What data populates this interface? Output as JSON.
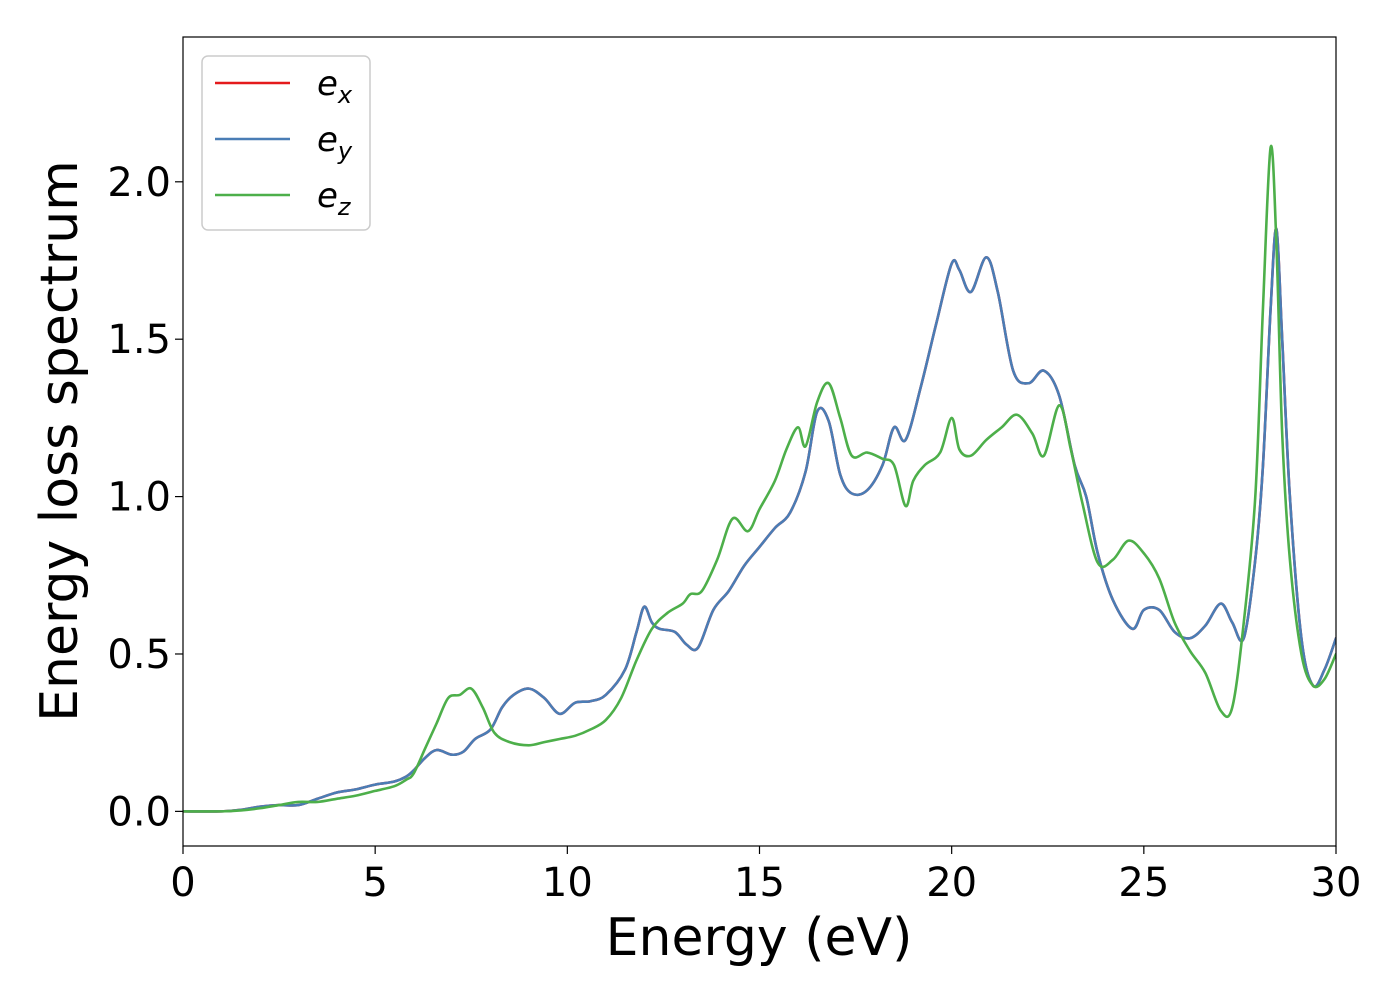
{
  "chart_data": {
    "type": "line",
    "xlabel": "Energy (eV)",
    "ylabel": "Energy loss spectrum",
    "xlim": [
      0,
      30
    ],
    "ylim": [
      -0.11,
      2.46
    ],
    "xticks": [
      0,
      5,
      10,
      15,
      20,
      25,
      30
    ],
    "xtick_labels": [
      "0",
      "5",
      "10",
      "15",
      "20",
      "25",
      "30"
    ],
    "yticks": [
      0.0,
      0.5,
      1.0,
      1.5,
      2.0
    ],
    "ytick_labels": [
      "0.0",
      "0.5",
      "1.0",
      "1.5",
      "2.0"
    ],
    "grid": false,
    "legend_position": "top-left",
    "series": [
      {
        "name": "e",
        "subscript": "x",
        "color": "#e41a1c",
        "x": [
          0,
          1,
          1.5,
          2,
          2.5,
          3,
          3.5,
          4,
          4.5,
          5,
          5.5,
          5.8,
          6,
          6.3,
          6.6,
          7,
          7.3,
          7.6,
          8,
          8.3,
          8.6,
          9,
          9.4,
          9.8,
          10.2,
          10.6,
          11,
          11.5,
          11.8,
          12,
          12.2,
          12.4,
          12.8,
          13.1,
          13.4,
          13.8,
          14.2,
          14.6,
          15,
          15.4,
          15.8,
          16.2,
          16.5,
          16.8,
          17.1,
          17.4,
          17.8,
          18.2,
          18.5,
          18.8,
          19.2,
          19.6,
          20,
          20.2,
          20.5,
          20.9,
          21.2,
          21.6,
          22,
          22.4,
          22.8,
          23.2,
          23.5,
          23.8,
          24.2,
          24.7,
          25,
          25.4,
          25.8,
          26.2,
          26.6,
          27,
          27.3,
          27.6,
          27.9,
          28.1,
          28.3,
          28.45,
          28.6,
          28.8,
          29.1,
          29.4,
          29.7,
          30
        ],
        "y": [
          0,
          0,
          0.005,
          0.015,
          0.02,
          0.02,
          0.04,
          0.06,
          0.07,
          0.085,
          0.095,
          0.11,
          0.13,
          0.17,
          0.195,
          0.18,
          0.19,
          0.23,
          0.26,
          0.33,
          0.37,
          0.39,
          0.36,
          0.31,
          0.345,
          0.35,
          0.37,
          0.45,
          0.57,
          0.65,
          0.6,
          0.58,
          0.57,
          0.53,
          0.52,
          0.64,
          0.7,
          0.78,
          0.84,
          0.9,
          0.95,
          1.08,
          1.27,
          1.24,
          1.07,
          1.01,
          1.02,
          1.1,
          1.22,
          1.18,
          1.35,
          1.55,
          1.74,
          1.72,
          1.65,
          1.76,
          1.65,
          1.4,
          1.36,
          1.4,
          1.32,
          1.1,
          1.0,
          0.82,
          0.67,
          0.58,
          0.64,
          0.64,
          0.57,
          0.55,
          0.59,
          0.66,
          0.6,
          0.55,
          0.8,
          1.1,
          1.6,
          1.85,
          1.5,
          1.0,
          0.55,
          0.4,
          0.45,
          0.55
        ]
      },
      {
        "name": "e",
        "subscript": "y",
        "color": "#4a7db5",
        "x": [
          0,
          1,
          1.5,
          2,
          2.5,
          3,
          3.5,
          4,
          4.5,
          5,
          5.5,
          5.8,
          6,
          6.3,
          6.6,
          7,
          7.3,
          7.6,
          8,
          8.3,
          8.6,
          9,
          9.4,
          9.8,
          10.2,
          10.6,
          11,
          11.5,
          11.8,
          12,
          12.2,
          12.4,
          12.8,
          13.1,
          13.4,
          13.8,
          14.2,
          14.6,
          15,
          15.4,
          15.8,
          16.2,
          16.5,
          16.8,
          17.1,
          17.4,
          17.8,
          18.2,
          18.5,
          18.8,
          19.2,
          19.6,
          20,
          20.2,
          20.5,
          20.9,
          21.2,
          21.6,
          22,
          22.4,
          22.8,
          23.2,
          23.5,
          23.8,
          24.2,
          24.7,
          25,
          25.4,
          25.8,
          26.2,
          26.6,
          27,
          27.3,
          27.6,
          27.9,
          28.1,
          28.3,
          28.45,
          28.6,
          28.8,
          29.1,
          29.4,
          29.7,
          30
        ],
        "y": [
          0,
          0,
          0.005,
          0.015,
          0.02,
          0.02,
          0.04,
          0.06,
          0.07,
          0.085,
          0.095,
          0.11,
          0.13,
          0.17,
          0.195,
          0.18,
          0.19,
          0.23,
          0.26,
          0.33,
          0.37,
          0.39,
          0.36,
          0.31,
          0.345,
          0.35,
          0.37,
          0.45,
          0.57,
          0.65,
          0.6,
          0.58,
          0.57,
          0.53,
          0.52,
          0.64,
          0.7,
          0.78,
          0.84,
          0.9,
          0.95,
          1.08,
          1.27,
          1.24,
          1.07,
          1.01,
          1.02,
          1.1,
          1.22,
          1.18,
          1.35,
          1.55,
          1.74,
          1.72,
          1.65,
          1.76,
          1.65,
          1.4,
          1.36,
          1.4,
          1.32,
          1.1,
          1.0,
          0.82,
          0.67,
          0.58,
          0.64,
          0.64,
          0.57,
          0.55,
          0.59,
          0.66,
          0.6,
          0.55,
          0.8,
          1.1,
          1.6,
          1.85,
          1.5,
          1.0,
          0.55,
          0.4,
          0.45,
          0.55
        ]
      },
      {
        "name": "e",
        "subscript": "z",
        "color": "#4daf4a",
        "x": [
          0,
          1,
          1.5,
          2,
          2.5,
          3,
          3.5,
          4,
          4.5,
          5,
          5.5,
          5.8,
          6,
          6.3,
          6.6,
          6.9,
          7.2,
          7.5,
          7.8,
          8.1,
          8.5,
          9,
          9.4,
          9.8,
          10.2,
          10.6,
          11,
          11.4,
          11.8,
          12.2,
          12.6,
          13,
          13.2,
          13.5,
          13.9,
          14.3,
          14.7,
          15,
          15.4,
          15.7,
          16,
          16.2,
          16.5,
          16.8,
          17.1,
          17.4,
          17.8,
          18.2,
          18.5,
          18.8,
          19,
          19.3,
          19.7,
          20,
          20.2,
          20.5,
          20.9,
          21.3,
          21.7,
          22.1,
          22.4,
          22.8,
          23.1,
          23.4,
          23.8,
          24.2,
          24.6,
          25,
          25.4,
          25.8,
          26.2,
          26.6,
          27,
          27.3,
          27.6,
          27.9,
          28.1,
          28.3,
          28.45,
          28.6,
          28.8,
          29.1,
          29.4,
          29.7,
          30
        ],
        "y": [
          0,
          0,
          0.003,
          0.01,
          0.02,
          0.03,
          0.03,
          0.04,
          0.05,
          0.065,
          0.08,
          0.1,
          0.12,
          0.2,
          0.28,
          0.36,
          0.37,
          0.39,
          0.33,
          0.25,
          0.22,
          0.21,
          0.22,
          0.23,
          0.24,
          0.26,
          0.29,
          0.36,
          0.48,
          0.58,
          0.63,
          0.66,
          0.69,
          0.7,
          0.8,
          0.93,
          0.89,
          0.96,
          1.05,
          1.15,
          1.22,
          1.16,
          1.3,
          1.36,
          1.25,
          1.13,
          1.14,
          1.12,
          1.1,
          0.97,
          1.05,
          1.1,
          1.14,
          1.25,
          1.15,
          1.13,
          1.18,
          1.22,
          1.26,
          1.2,
          1.13,
          1.29,
          1.15,
          0.98,
          0.79,
          0.8,
          0.86,
          0.82,
          0.74,
          0.6,
          0.51,
          0.44,
          0.32,
          0.33,
          0.6,
          1.0,
          1.6,
          2.11,
          1.8,
          1.2,
          0.8,
          0.5,
          0.4,
          0.42,
          0.5
        ]
      }
    ]
  }
}
